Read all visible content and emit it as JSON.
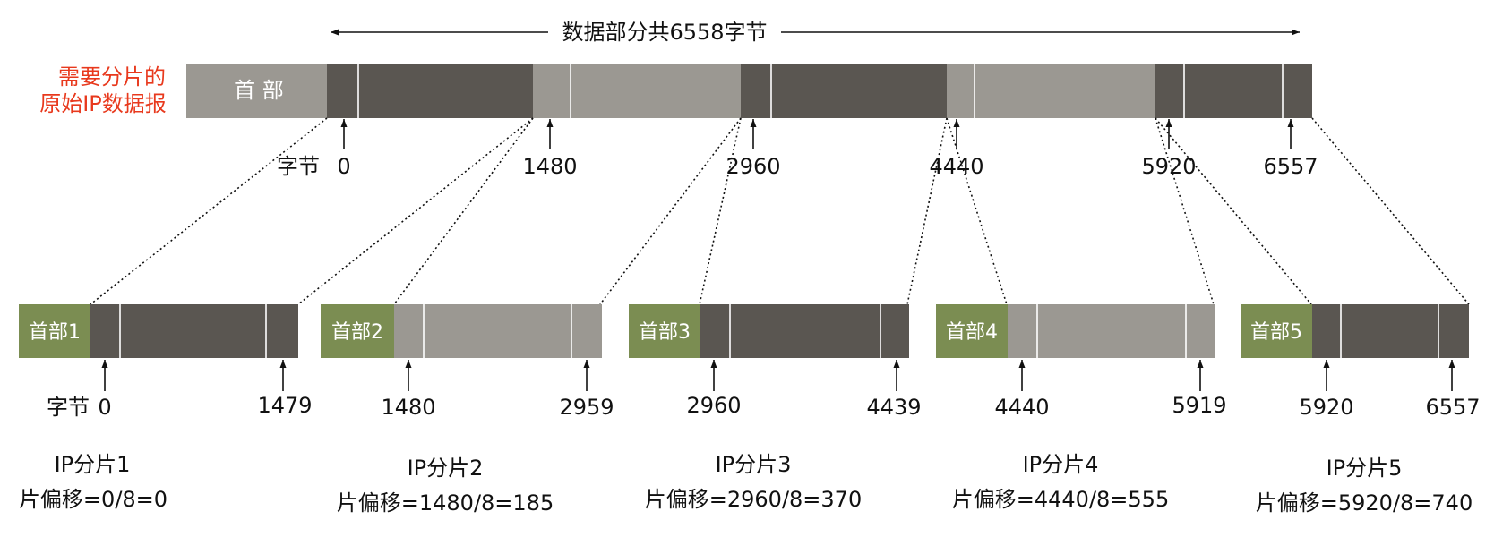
{
  "colors": {
    "header_gray": "#9b9892",
    "data_dark": "#5a5651",
    "data_light": "#9b9892",
    "fragment_header_green": "#7b8d52",
    "title_red": "#e8391d",
    "text_black": "#111111"
  },
  "top": {
    "span_label": "数据部分共6558字节",
    "title_line1": "需要分片的",
    "title_line2": "原始IP数据报",
    "header_label": "首 部",
    "byte_word": "字节",
    "markers": [
      "0",
      "1480",
      "2960",
      "4440",
      "5920",
      "6557"
    ]
  },
  "fragments": [
    {
      "header": "首部1",
      "start": "0",
      "end": "1479",
      "byte_word": "字节",
      "name": "IP分片1",
      "offset": "片偏移=0/8=0",
      "shade": "dark"
    },
    {
      "header": "首部2",
      "start": "1480",
      "end": "2959",
      "name": "IP分片2",
      "offset": "片偏移=1480/8=185",
      "shade": "light"
    },
    {
      "header": "首部3",
      "start": "2960",
      "end": "4439",
      "name": "IP分片3",
      "offset": "片偏移=2960/8=370",
      "shade": "dark"
    },
    {
      "header": "首部4",
      "start": "4440",
      "end": "5919",
      "name": "IP分片4",
      "offset": "片偏移=4440/8=555",
      "shade": "light"
    },
    {
      "header": "首部5",
      "start": "5920",
      "end": "6557",
      "name": "IP分片5",
      "offset": "片偏移=5920/8=740",
      "shade": "dark"
    }
  ]
}
